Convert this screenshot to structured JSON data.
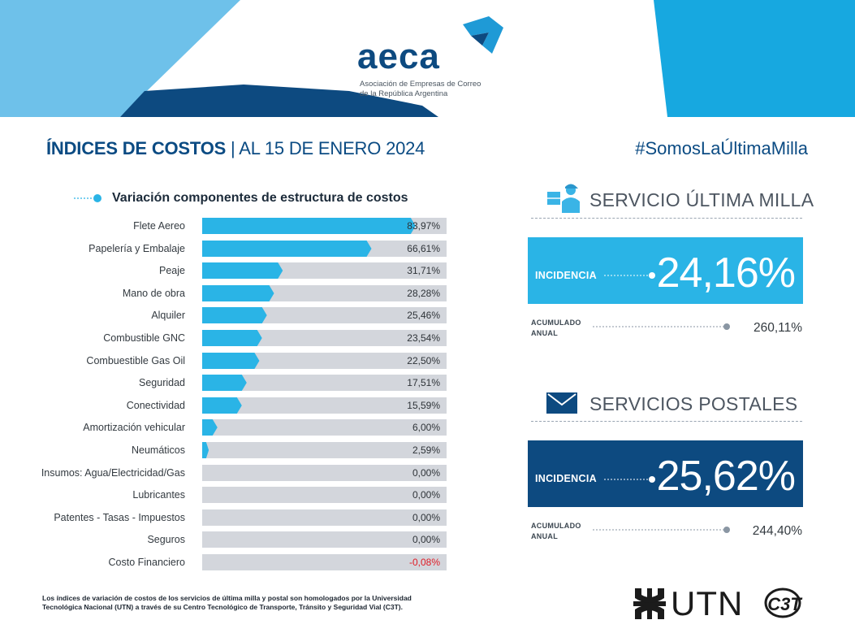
{
  "header": {
    "logo_text": "aeca",
    "org_line1": "Asociación de Empresas de Correo",
    "org_line2": "de la República Argentina"
  },
  "title": {
    "bold": "ÍNDICES DE COSTOS",
    "rest": "| AL 15 DE ENERO 2024"
  },
  "hashtag": "#SomosLaÚltimaMilla",
  "chart_data": {
    "type": "bar",
    "orientation": "horizontal",
    "title": "Variación componentes de estructura de costos",
    "categories": [
      "Flete Aereo",
      "Papelería y Embalaje",
      "Peaje",
      "Mano de obra",
      "Alquiler",
      "Combustible GNC",
      "Combuestible Gas Oil",
      "Seguridad",
      "Conectividad",
      "Amortización vehicular",
      "Neumáticos",
      "Insumos: Agua/Electricidad/Gas",
      "Lubricantes",
      "Patentes - Tasas - Impuestos",
      "Seguros",
      "Costo Financiero"
    ],
    "values": [
      83.97,
      66.61,
      31.71,
      28.28,
      25.46,
      23.54,
      22.5,
      17.51,
      15.59,
      6.0,
      2.59,
      0.0,
      0.0,
      0.0,
      0.0,
      -0.08
    ],
    "value_labels": [
      "83,97%",
      "66,61%",
      "31,71%",
      "28,28%",
      "25,46%",
      "23,54%",
      "22,50%",
      "17,51%",
      "15,59%",
      "6,00%",
      "2,59%",
      "0,00%",
      "0,00%",
      "0,00%",
      "0,00%",
      "-0,08%"
    ],
    "xlim": [
      0,
      100
    ],
    "bar_color": "#2ab4e6",
    "track_color": "#d3d6dc",
    "negative_color": "#e01b24"
  },
  "last_mile": {
    "title": "SERVICIO ÚLTIMA MILLA",
    "icon": "delivery-person-icon",
    "incidence_label": "INCIDENCIA",
    "incidence_value": "24,16%",
    "accumulated_label_1": "ACUMULADO",
    "accumulated_label_2": "ANUAL",
    "accumulated_value": "260,11%",
    "color": "#2ab4e6"
  },
  "postal": {
    "title": "SERVICIOS POSTALES",
    "icon": "envelope-icon",
    "incidence_label": "INCIDENCIA",
    "incidence_value": "25,62%",
    "accumulated_label_1": "ACUMULADO",
    "accumulated_label_2": "ANUAL",
    "accumulated_value": "244,40%",
    "color": "#0d4a80"
  },
  "footnote_1": "Los índices de variación de costos de los servicios de última milla y postal son homologados por la Universidad",
  "footnote_2": "Tecnológica Nacional (UTN) a través de su Centro Tecnológico de Transporte, Tránsito y Seguridad Vial (C3T).",
  "footer": {
    "utn_text": "UTN",
    "c3t_text": "C3T"
  }
}
